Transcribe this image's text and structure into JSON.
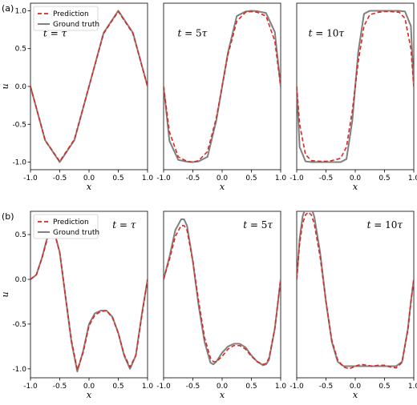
{
  "rows": [
    {
      "label": "(a)"
    },
    {
      "label": "(b)"
    }
  ],
  "legend": {
    "prediction": "Prediction",
    "ground_truth": "Ground truth"
  },
  "colors": {
    "prediction": "#e3241b",
    "ground_truth": "#808080"
  },
  "chart_data": [
    {
      "type": "line",
      "row": "(a)",
      "annotation": "t = τ",
      "xlabel": "x",
      "ylabel": "u",
      "xlim": [
        -1,
        1
      ],
      "ylim": [
        -1.1,
        1.1
      ],
      "xticks": [
        "-1.0",
        "-0.5",
        "0.0",
        "0.5",
        "1.0"
      ],
      "yticks": [
        "-1.0",
        "-0.5",
        "0.0",
        "0.5",
        "1.0"
      ],
      "x": [
        -1.0,
        -0.75,
        -0.5,
        -0.25,
        0.0,
        0.25,
        0.5,
        0.75,
        1.0
      ],
      "series": [
        {
          "name": "Ground truth",
          "values": [
            0.0,
            -0.71,
            -1.0,
            -0.71,
            0.0,
            0.71,
            1.0,
            0.71,
            0.0
          ]
        },
        {
          "name": "Prediction",
          "values": [
            0.0,
            -0.71,
            -0.99,
            -0.7,
            0.0,
            0.7,
            0.99,
            0.7,
            0.0
          ]
        }
      ]
    },
    {
      "type": "line",
      "row": "(a)",
      "annotation": "t = 5τ",
      "xlabel": "x",
      "xlim": [
        -1,
        1
      ],
      "ylim": [
        -1.1,
        1.1
      ],
      "xticks": [
        "-1.0",
        "-0.5",
        "0.0",
        "0.5",
        "1.0"
      ],
      "x": [
        -1.0,
        -0.9,
        -0.75,
        -0.6,
        -0.5,
        -0.4,
        -0.25,
        -0.1,
        0.0,
        0.1,
        0.25,
        0.4,
        0.5,
        0.6,
        0.75,
        0.9,
        1.0
      ],
      "series": [
        {
          "name": "Ground truth",
          "values": [
            0.0,
            -0.72,
            -0.97,
            -0.995,
            -1.0,
            -0.99,
            -0.93,
            -0.45,
            0.0,
            0.45,
            0.93,
            0.99,
            1.0,
            0.995,
            0.97,
            0.72,
            0.0
          ]
        },
        {
          "name": "Prediction",
          "values": [
            0.0,
            -0.6,
            -0.93,
            -0.99,
            -1.0,
            -0.98,
            -0.86,
            -0.42,
            0.0,
            0.42,
            0.86,
            0.98,
            0.99,
            0.98,
            0.93,
            0.6,
            0.0
          ]
        }
      ]
    },
    {
      "type": "line",
      "row": "(a)",
      "annotation": "t = 10τ",
      "xlabel": "x",
      "xlim": [
        -1,
        1
      ],
      "ylim": [
        -1.1,
        1.1
      ],
      "xticks": [
        "-1.0",
        "-0.5",
        "0.0",
        "0.5",
        "1.0"
      ],
      "x": [
        -1.0,
        -0.95,
        -0.85,
        -0.75,
        -0.6,
        -0.5,
        -0.4,
        -0.25,
        -0.15,
        -0.05,
        0.0,
        0.05,
        0.15,
        0.25,
        0.4,
        0.5,
        0.6,
        0.75,
        0.85,
        0.95,
        1.0
      ],
      "series": [
        {
          "name": "Ground truth",
          "values": [
            0.0,
            -0.8,
            -0.99,
            -1.0,
            -1.0,
            -1.0,
            -1.0,
            -1.0,
            -0.96,
            -0.45,
            0.0,
            0.45,
            0.96,
            1.0,
            1.0,
            1.0,
            1.0,
            1.0,
            0.99,
            0.8,
            0.0
          ]
        },
        {
          "name": "Prediction",
          "values": [
            0.0,
            -0.5,
            -0.9,
            -0.98,
            -0.99,
            -0.99,
            -0.98,
            -0.95,
            -0.8,
            -0.32,
            0.0,
            0.32,
            0.8,
            0.95,
            0.98,
            0.99,
            0.99,
            0.98,
            0.9,
            0.5,
            0.0
          ]
        }
      ]
    },
    {
      "type": "line",
      "row": "(b)",
      "annotation": "t = τ",
      "xlabel": "x",
      "ylabel": "u",
      "xlim": [
        -1,
        1
      ],
      "ylim": [
        -1.1,
        0.76
      ],
      "xticks": [
        "-1.0",
        "-0.5",
        "0.0",
        "0.5",
        "1.0"
      ],
      "yticks": [
        "-1.0",
        "-0.5",
        "0.0",
        "0.5"
      ],
      "x": [
        -1.0,
        -0.9,
        -0.8,
        -0.7,
        -0.6,
        -0.5,
        -0.4,
        -0.3,
        -0.2,
        -0.1,
        0.0,
        0.1,
        0.2,
        0.3,
        0.4,
        0.5,
        0.6,
        0.7,
        0.8,
        0.9,
        1.0
      ],
      "series": [
        {
          "name": "Ground truth",
          "values": [
            0.0,
            0.05,
            0.25,
            0.5,
            0.55,
            0.3,
            -0.2,
            -0.7,
            -1.03,
            -0.8,
            -0.5,
            -0.38,
            -0.35,
            -0.35,
            -0.42,
            -0.6,
            -0.85,
            -1.0,
            -0.85,
            -0.4,
            0.0
          ]
        },
        {
          "name": "Prediction",
          "values": [
            0.0,
            0.05,
            0.24,
            0.48,
            0.54,
            0.3,
            -0.2,
            -0.68,
            -1.01,
            -0.82,
            -0.52,
            -0.4,
            -0.36,
            -0.35,
            -0.43,
            -0.6,
            -0.84,
            -0.98,
            -0.85,
            -0.42,
            0.0
          ]
        }
      ]
    },
    {
      "type": "line",
      "row": "(b)",
      "annotation": "t = 5τ",
      "xlabel": "x",
      "xlim": [
        -1,
        1
      ],
      "ylim": [
        -1.1,
        0.76
      ],
      "xticks": [
        "-1.0",
        "-0.5",
        "0.0",
        "0.5",
        "1.0"
      ],
      "x": [
        -1.0,
        -0.9,
        -0.8,
        -0.7,
        -0.65,
        -0.6,
        -0.5,
        -0.4,
        -0.3,
        -0.2,
        -0.15,
        -0.1,
        0.0,
        0.1,
        0.2,
        0.3,
        0.4,
        0.5,
        0.6,
        0.7,
        0.75,
        0.8,
        0.9,
        1.0
      ],
      "series": [
        {
          "name": "Ground truth",
          "values": [
            0.0,
            0.25,
            0.55,
            0.67,
            0.67,
            0.6,
            0.2,
            -0.3,
            -0.7,
            -0.93,
            -0.95,
            -0.92,
            -0.82,
            -0.75,
            -0.72,
            -0.72,
            -0.76,
            -0.85,
            -0.92,
            -0.96,
            -0.95,
            -0.9,
            -0.55,
            0.0
          ]
        },
        {
          "name": "Prediction",
          "values": [
            0.0,
            0.22,
            0.48,
            0.6,
            0.6,
            0.55,
            0.2,
            -0.25,
            -0.65,
            -0.88,
            -0.92,
            -0.92,
            -0.86,
            -0.78,
            -0.74,
            -0.74,
            -0.78,
            -0.86,
            -0.92,
            -0.95,
            -0.94,
            -0.88,
            -0.55,
            0.0
          ]
        }
      ]
    },
    {
      "type": "line",
      "row": "(b)",
      "annotation": "t = 10τ",
      "xlabel": "x",
      "xlim": [
        -1,
        1
      ],
      "ylim": [
        -1.1,
        0.76
      ],
      "xticks": [
        "-1.0",
        "-0.5",
        "0.0",
        "0.5",
        "1.0"
      ],
      "x": [
        -1.0,
        -0.95,
        -0.9,
        -0.85,
        -0.8,
        -0.75,
        -0.7,
        -0.6,
        -0.5,
        -0.4,
        -0.3,
        -0.2,
        -0.1,
        0.0,
        0.1,
        0.2,
        0.3,
        0.4,
        0.5,
        0.6,
        0.7,
        0.8,
        0.9,
        0.95,
        1.0
      ],
      "series": [
        {
          "name": "Ground truth",
          "values": [
            0.0,
            0.45,
            0.7,
            0.8,
            0.82,
            0.8,
            0.7,
            0.3,
            -0.25,
            -0.7,
            -0.92,
            -0.97,
            -0.97,
            -0.97,
            -0.97,
            -0.97,
            -0.97,
            -0.97,
            -0.97,
            -0.97,
            -0.97,
            -0.92,
            -0.55,
            -0.25,
            0.0
          ]
        },
        {
          "name": "Prediction",
          "values": [
            0.0,
            0.4,
            0.62,
            0.72,
            0.75,
            0.72,
            0.62,
            0.25,
            -0.25,
            -0.68,
            -0.9,
            -0.98,
            -1.0,
            -0.97,
            -0.95,
            -0.96,
            -0.97,
            -0.96,
            -0.96,
            -0.98,
            -0.99,
            -0.93,
            -0.56,
            -0.26,
            0.0
          ]
        }
      ]
    }
  ]
}
